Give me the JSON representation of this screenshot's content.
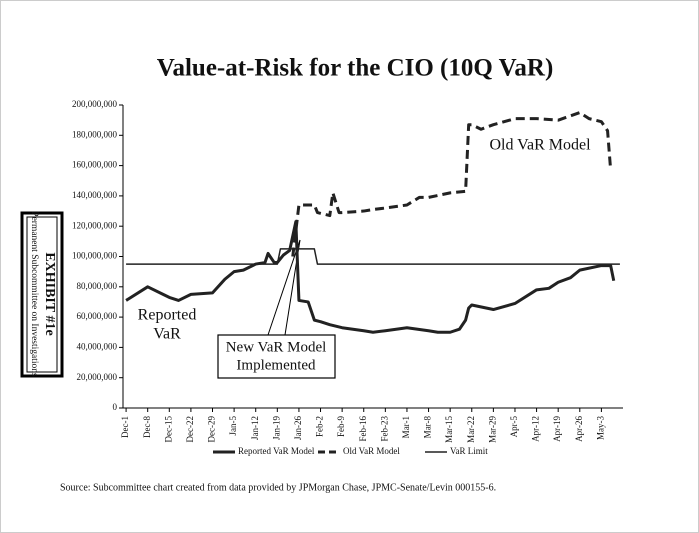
{
  "chart_data": {
    "type": "line",
    "title": "Value-at-Risk for the CIO (10Q VaR)",
    "source": "Source:  Subcommittee chart created from data provided by JPMorgan Chase, JPMC-Senate/Levin 000155-6.",
    "annotations": {
      "old": "Old VaR Model",
      "reported": [
        "Reported",
        "VaR"
      ],
      "new": [
        "New VaR Model",
        "Implemented"
      ]
    },
    "xlim": [
      -1,
      161
    ],
    "xticks": [
      {
        "value": 0,
        "label": "Dec-1"
      },
      {
        "value": 7,
        "label": "Dec-8"
      },
      {
        "value": 14,
        "label": "Dec-15"
      },
      {
        "value": 21,
        "label": "Dec-22"
      },
      {
        "value": 28,
        "label": "Dec-29"
      },
      {
        "value": 35,
        "label": "Jan-5"
      },
      {
        "value": 42,
        "label": "Jan-12"
      },
      {
        "value": 49,
        "label": "Jan-19"
      },
      {
        "value": 56,
        "label": "Jan-26"
      },
      {
        "value": 63,
        "label": "Feb-2"
      },
      {
        "value": 70,
        "label": "Feb-9"
      },
      {
        "value": 77,
        "label": "Feb-16"
      },
      {
        "value": 84,
        "label": "Feb-23"
      },
      {
        "value": 91,
        "label": "Mar-1"
      },
      {
        "value": 98,
        "label": "Mar-8"
      },
      {
        "value": 105,
        "label": "Mar-15"
      },
      {
        "value": 112,
        "label": "Mar-22"
      },
      {
        "value": 119,
        "label": "Mar-29"
      },
      {
        "value": 126,
        "label": "Apr-5"
      },
      {
        "value": 133,
        "label": "Apr-12"
      },
      {
        "value": 140,
        "label": "Apr-19"
      },
      {
        "value": 147,
        "label": "Apr-26"
      },
      {
        "value": 154,
        "label": "May-3"
      }
    ],
    "ylim": [
      0,
      200000000
    ],
    "yticks": [
      0,
      {
        "value": 20000000,
        "label": "20,000,000"
      },
      {
        "value": 40000000,
        "label": "40,000,000"
      },
      {
        "value": 60000000,
        "label": "60,000,000"
      },
      {
        "value": 80000000,
        "label": "80,000,000"
      },
      {
        "value": 100000000,
        "label": "100,000,000"
      },
      {
        "value": 120000000,
        "label": "120,000,000"
      },
      {
        "value": 140000000,
        "label": "140,000,000"
      },
      {
        "value": 160000000,
        "label": "160,000,000"
      },
      {
        "value": 180000000,
        "label": "180,000,000"
      },
      {
        "value": 200000000,
        "label": "200,000,000"
      }
    ],
    "legend": "bottom",
    "series": [
      {
        "name": "Reported VaR Model",
        "color": "#222222",
        "width": 3,
        "dashed": false,
        "x": [
          0,
          7,
          12,
          14,
          17,
          21,
          28,
          32,
          35,
          38,
          42,
          45,
          46,
          48,
          49,
          51,
          53,
          55,
          56,
          59,
          61,
          63,
          66,
          70,
          77,
          80,
          84,
          91,
          98,
          101,
          105,
          108,
          110,
          111,
          112,
          119,
          126,
          133,
          137,
          140,
          144,
          147,
          154,
          157,
          158
        ],
        "values": [
          71000000,
          80000000,
          75000000,
          73000000,
          71000000,
          75000000,
          76000000,
          85000000,
          90000000,
          91000000,
          95000000,
          96000000,
          102000000,
          96000000,
          96000000,
          101000000,
          104000000,
          123000000,
          71000000,
          70000000,
          58000000,
          57000000,
          55000000,
          53000000,
          51000000,
          50000000,
          51000000,
          53000000,
          51000000,
          50000000,
          50000000,
          52000000,
          58000000,
          66000000,
          68000000,
          65000000,
          69000000,
          78000000,
          79000000,
          83000000,
          86000000,
          91000000,
          94000000,
          94000000,
          84000000
        ]
      },
      {
        "name": "Old VaR Model",
        "color": "#222222",
        "width": 3,
        "dashed": true,
        "x": [
          54,
          56,
          58,
          61,
          62,
          66,
          67,
          69,
          70,
          77,
          80,
          84,
          91,
          95,
          98,
          105,
          110,
          111,
          112,
          115,
          119,
          126,
          133,
          140,
          147,
          150,
          154,
          156,
          157
        ],
        "values": [
          100000000,
          134000000,
          134000000,
          134000000,
          129000000,
          127000000,
          142000000,
          129000000,
          129000000,
          130000000,
          131000000,
          132000000,
          134000000,
          139000000,
          139000000,
          142000000,
          143000000,
          187000000,
          187000000,
          184000000,
          187000000,
          191000000,
          191000000,
          190000000,
          195000000,
          191000000,
          189000000,
          183000000,
          157000000
        ]
      },
      {
        "name": "VaR Limit",
        "color": "#222222",
        "width": 1.5,
        "dashed": false,
        "x": [
          0,
          49,
          50,
          61,
          62,
          160
        ],
        "values": [
          95000000,
          95000000,
          105000000,
          105000000,
          95000000,
          95000000
        ]
      }
    ]
  },
  "stamp": {
    "title": "EXHIBIT #1e",
    "subtitle": "Permanent Subcommittee on Investigations"
  }
}
